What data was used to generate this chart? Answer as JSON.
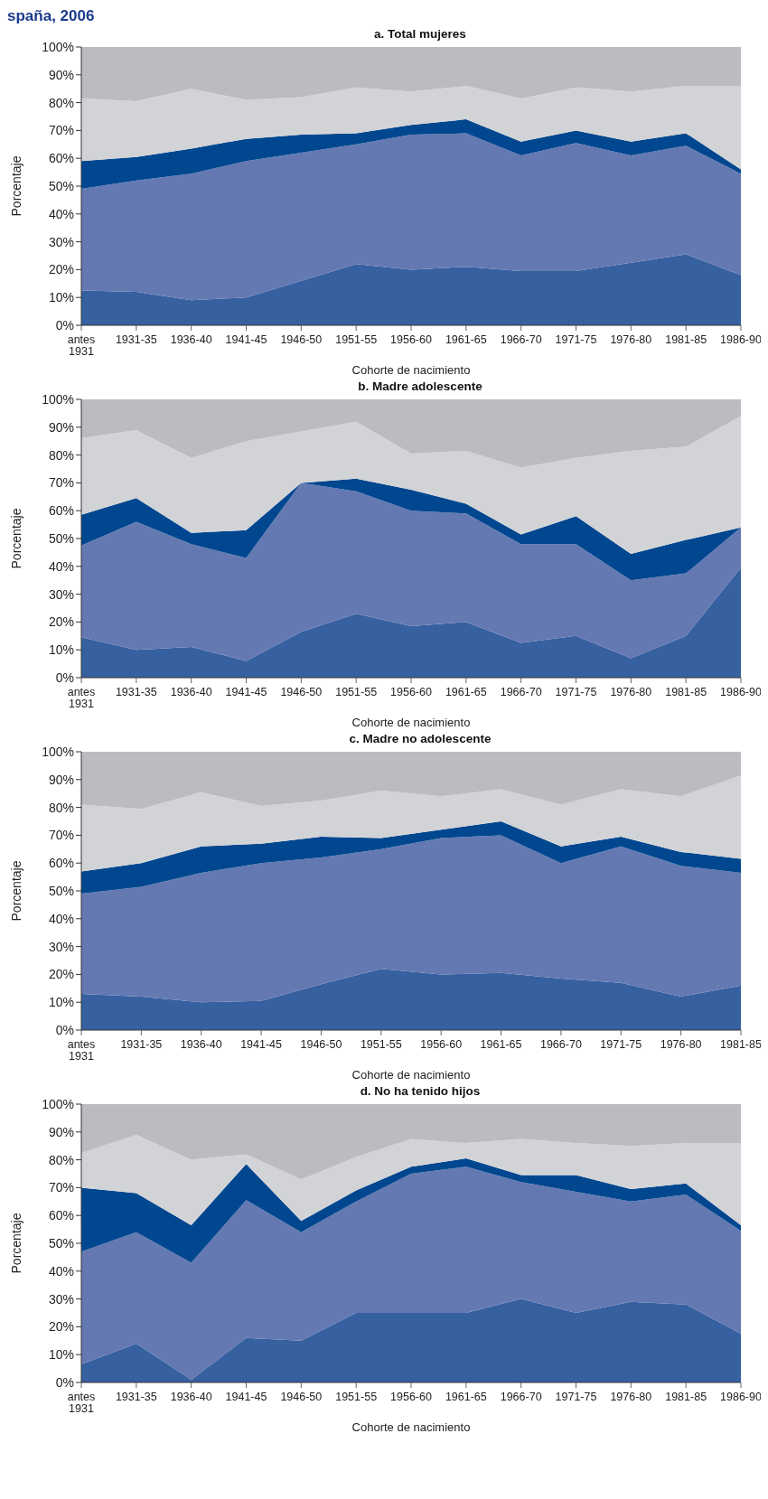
{
  "chart_data": [
    {
      "type": "area",
      "stacked": true,
      "annotations": [
        "spaña, 2006"
      ],
      "title": "a. Total mujeres",
      "xlabel": "Cohorte de nacimiento",
      "ylabel": "Porcentaje",
      "categories": [
        "antes 1931",
        "1931-35",
        "1936-40",
        "1941-45",
        "1946-50",
        "1951-55",
        "1956-60",
        "1961-65",
        "1966-70",
        "1971-75",
        "1976-80",
        "1981-85",
        "1986-90"
      ],
      "ylim": [
        0,
        100
      ],
      "yticks": [
        {
          "value": 0,
          "label": "0%"
        },
        {
          "value": 10,
          "label": "10%"
        },
        {
          "value": 20,
          "label": "20%"
        },
        {
          "value": 30,
          "label": "30%"
        },
        {
          "value": 40,
          "label": "40%"
        },
        {
          "value": 50,
          "label": "50%"
        },
        {
          "value": 60,
          "label": "60%"
        },
        {
          "value": 70,
          "label": "70%"
        },
        {
          "value": 80,
          "label": "80%"
        },
        {
          "value": 90,
          "label": "90%"
        },
        {
          "value": 100,
          "label": "100%"
        }
      ],
      "series": [
        {
          "color": "#3760a0",
          "values": [
            12.5,
            12,
            9,
            10,
            16,
            22,
            20,
            21,
            19.5,
            19.5,
            22.5,
            25.5,
            18
          ]
        },
        {
          "color": "#6479b1",
          "values": [
            36.5,
            40,
            45.5,
            49,
            46,
            43,
            48.5,
            48,
            41.5,
            46,
            38.5,
            39,
            36.5
          ]
        },
        {
          "color": "#004790",
          "values": [
            10,
            8.5,
            9,
            8,
            6.5,
            4,
            3.5,
            5,
            5,
            4.5,
            5,
            4.5,
            1.5
          ]
        },
        {
          "color": "#d2d3d6",
          "values": [
            22.5,
            20,
            21.5,
            14,
            13.5,
            16.5,
            12,
            12,
            15.5,
            15.5,
            18,
            17,
            30
          ]
        },
        {
          "color": "#bbbcc0",
          "values": [
            18.5,
            19.5,
            15,
            19,
            18,
            14.5,
            16,
            14,
            18.5,
            14.5,
            16,
            14,
            14
          ]
        }
      ]
    },
    {
      "type": "area",
      "stacked": true,
      "title": "b. Madre adolescente",
      "xlabel": "Cohorte de nacimiento",
      "ylabel": "Porcentaje",
      "categories": [
        "antes 1931",
        "1931-35",
        "1936-40",
        "1941-45",
        "1946-50",
        "1951-55",
        "1956-60",
        "1961-65",
        "1966-70",
        "1971-75",
        "1976-80",
        "1981-85",
        "1986-90"
      ],
      "ylim": [
        0,
        100
      ],
      "yticks": [
        {
          "value": 0,
          "label": "0%"
        },
        {
          "value": 10,
          "label": "10%"
        },
        {
          "value": 20,
          "label": "20%"
        },
        {
          "value": 30,
          "label": "30%"
        },
        {
          "value": 40,
          "label": "40%"
        },
        {
          "value": 50,
          "label": "50%"
        },
        {
          "value": 60,
          "label": "60%"
        },
        {
          "value": 70,
          "label": "70%"
        },
        {
          "value": 80,
          "label": "80%"
        },
        {
          "value": 90,
          "label": "90%"
        },
        {
          "value": 100,
          "label": "100%"
        }
      ],
      "series": [
        {
          "color": "#3760a0",
          "values": [
            14.5,
            10,
            11,
            6,
            16.5,
            23,
            18.5,
            20,
            12.5,
            15,
            7,
            15,
            39.5
          ]
        },
        {
          "color": "#6479b1",
          "values": [
            33,
            46,
            37,
            37,
            53.5,
            44,
            41.5,
            39,
            35.5,
            33,
            28,
            22.5,
            14.5
          ]
        },
        {
          "color": "#004790",
          "values": [
            11,
            8.5,
            4,
            10,
            0,
            4.5,
            7.5,
            3.5,
            3.5,
            10,
            9.5,
            12,
            0
          ]
        },
        {
          "color": "#d2d3d6",
          "values": [
            27.5,
            24.5,
            27,
            32,
            18.5,
            20.5,
            13,
            19,
            24,
            21,
            37,
            33.5,
            40
          ]
        },
        {
          "color": "#bbbcc0",
          "values": [
            14,
            11,
            21,
            15,
            11.5,
            8,
            19.5,
            18.5,
            24.5,
            21,
            18.5,
            17,
            6
          ]
        }
      ]
    },
    {
      "type": "area",
      "stacked": true,
      "title": "c. Madre no adolescente",
      "xlabel": "Cohorte de nacimiento",
      "ylabel": "Porcentaje",
      "categories": [
        "antes 1931",
        "1931-35",
        "1936-40",
        "1941-45",
        "1946-50",
        "1951-55",
        "1956-60",
        "1961-65",
        "1966-70",
        "1971-75",
        "1976-80",
        "1981-85"
      ],
      "ylim": [
        0,
        100
      ],
      "yticks": [
        {
          "value": 0,
          "label": "0%"
        },
        {
          "value": 10,
          "label": "10%"
        },
        {
          "value": 20,
          "label": "20%"
        },
        {
          "value": 30,
          "label": "30%"
        },
        {
          "value": 40,
          "label": "40%"
        },
        {
          "value": 50,
          "label": "50%"
        },
        {
          "value": 60,
          "label": "60%"
        },
        {
          "value": 70,
          "label": "70%"
        },
        {
          "value": 80,
          "label": "80%"
        },
        {
          "value": 90,
          "label": "90%"
        },
        {
          "value": 100,
          "label": "100%"
        }
      ],
      "series": [
        {
          "color": "#3760a0",
          "values": [
            13,
            12,
            10,
            10.5,
            16.5,
            22,
            20,
            20.5,
            18.5,
            17,
            12,
            16
          ]
        },
        {
          "color": "#6479b1",
          "values": [
            36,
            39.5,
            46.5,
            49.5,
            45.5,
            43,
            49,
            49.5,
            41.5,
            49,
            47,
            40.5
          ]
        },
        {
          "color": "#004790",
          "values": [
            8,
            8.5,
            9.5,
            7,
            7.5,
            4,
            3,
            5,
            6,
            3.5,
            5,
            5
          ]
        },
        {
          "color": "#d2d3d6",
          "values": [
            24,
            19.5,
            19.5,
            13.5,
            13,
            17,
            12,
            11.5,
            15,
            17,
            20,
            30
          ]
        },
        {
          "color": "#bbbcc0",
          "values": [
            19,
            20.5,
            14.5,
            19.5,
            17.5,
            14,
            16,
            13.5,
            19,
            13.5,
            16,
            8.5
          ]
        }
      ]
    },
    {
      "type": "area",
      "stacked": true,
      "title": "d. No ha tenido hijos",
      "xlabel": "Cohorte de nacimiento",
      "ylabel": "Porcentaje",
      "categories": [
        "antes 1931",
        "1931-35",
        "1936-40",
        "1941-45",
        "1946-50",
        "1951-55",
        "1956-60",
        "1961-65",
        "1966-70",
        "1971-75",
        "1976-80",
        "1981-85",
        "1986-90"
      ],
      "ylim": [
        0,
        100
      ],
      "yticks": [
        {
          "value": 0,
          "label": "0%"
        },
        {
          "value": 10,
          "label": "10%"
        },
        {
          "value": 20,
          "label": "20%"
        },
        {
          "value": 30,
          "label": "30%"
        },
        {
          "value": 40,
          "label": "40%"
        },
        {
          "value": 50,
          "label": "50%"
        },
        {
          "value": 60,
          "label": "60%"
        },
        {
          "value": 70,
          "label": "70%"
        },
        {
          "value": 80,
          "label": "80%"
        },
        {
          "value": 90,
          "label": "90%"
        },
        {
          "value": 100,
          "label": "100%"
        }
      ],
      "series": [
        {
          "color": "#3760a0",
          "values": [
            6.5,
            14,
            1,
            16,
            15,
            25,
            25,
            25,
            30,
            25,
            29,
            28,
            17.5
          ]
        },
        {
          "color": "#6479b1",
          "values": [
            40.5,
            40,
            42,
            49.5,
            39,
            40,
            50,
            52.5,
            42,
            43.5,
            36,
            39.5,
            37
          ]
        },
        {
          "color": "#004790",
          "values": [
            23,
            14,
            13.5,
            13,
            4,
            4,
            2.5,
            3,
            2.5,
            6,
            4.5,
            4,
            2
          ]
        },
        {
          "color": "#d2d3d6",
          "values": [
            12.5,
            21,
            23.5,
            3.5,
            15,
            12,
            10,
            5.5,
            13,
            11.5,
            15.5,
            14.5,
            29.5
          ]
        },
        {
          "color": "#bbbcc0",
          "values": [
            17.5,
            11,
            20,
            18,
            27,
            19,
            12.5,
            14,
            12.5,
            14,
            15,
            14,
            14
          ]
        }
      ]
    }
  ]
}
